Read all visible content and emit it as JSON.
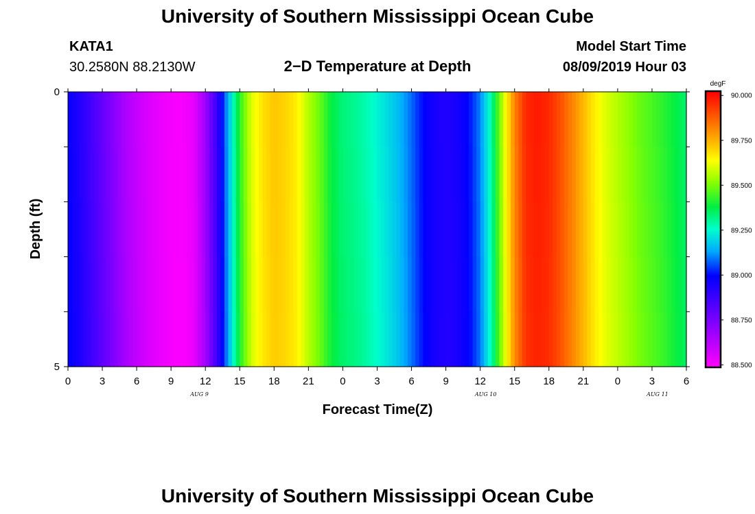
{
  "header": {
    "title": "University of Southern Mississippi Ocean Cube",
    "station": "KATA1",
    "coords": "30.2580N 88.2130W",
    "plot_title": "2−D Temperature at Depth",
    "model_start_label": "Model Start Time",
    "model_start_value": "08/09/2019 Hour 03"
  },
  "footer": {
    "title": "University of Southern Mississippi Ocean Cube"
  },
  "chart_data": {
    "type": "heatmap",
    "title": "2−D Temperature at Depth",
    "xlabel": "Forecast Time(Z)",
    "ylabel": "Depth (ft)",
    "x_ticks": [
      "0",
      "3",
      "6",
      "9",
      "12",
      "15",
      "18",
      "21",
      "0",
      "3",
      "6",
      "9",
      "12",
      "15",
      "18",
      "21",
      "0",
      "3",
      "6"
    ],
    "x_range_hours": [
      0,
      54
    ],
    "y_ticks": [
      "0",
      "5"
    ],
    "ylim": [
      0,
      5
    ],
    "y_reversed": true,
    "date_labels": [
      {
        "hour": 11,
        "text": "AUG  9"
      },
      {
        "hour": 36,
        "text": "AUG  10"
      },
      {
        "hour": 51,
        "text": "AUG  11"
      }
    ],
    "colorbar": {
      "unit": "degF",
      "min": 88.49,
      "max": 90.02,
      "ticks": [
        "90.000",
        "89.750",
        "89.500",
        "89.250",
        "89.000",
        "88.750",
        "88.500"
      ],
      "tick_values": [
        90.0,
        89.75,
        89.5,
        89.25,
        89.0,
        88.75,
        88.5
      ]
    },
    "series": [
      {
        "hour": 0,
        "temp": 88.98
      },
      {
        "hour": 1,
        "temp": 88.93
      },
      {
        "hour": 2,
        "temp": 88.86
      },
      {
        "hour": 3,
        "temp": 88.79
      },
      {
        "hour": 4,
        "temp": 88.72
      },
      {
        "hour": 5,
        "temp": 88.65
      },
      {
        "hour": 6,
        "temp": 88.6
      },
      {
        "hour": 7,
        "temp": 88.56
      },
      {
        "hour": 8,
        "temp": 88.53
      },
      {
        "hour": 9,
        "temp": 88.51
      },
      {
        "hour": 10,
        "temp": 88.5
      },
      {
        "hour": 11,
        "temp": 88.54
      },
      {
        "hour": 12,
        "temp": 88.68
      },
      {
        "hour": 13,
        "temp": 88.88
      },
      {
        "hour": 14,
        "temp": 89.15
      },
      {
        "hour": 15,
        "temp": 89.42
      },
      {
        "hour": 16,
        "temp": 89.6
      },
      {
        "hour": 17,
        "temp": 89.68
      },
      {
        "hour": 18,
        "temp": 89.72
      },
      {
        "hour": 19,
        "temp": 89.7
      },
      {
        "hour": 20,
        "temp": 89.66
      },
      {
        "hour": 21,
        "temp": 89.56
      },
      {
        "hour": 22,
        "temp": 89.48
      },
      {
        "hour": 23,
        "temp": 89.38
      },
      {
        "hour": 24,
        "temp": 89.33
      },
      {
        "hour": 25,
        "temp": 89.31
      },
      {
        "hour": 26,
        "temp": 89.28
      },
      {
        "hour": 27,
        "temp": 89.24
      },
      {
        "hour": 28,
        "temp": 89.2
      },
      {
        "hour": 29,
        "temp": 89.15
      },
      {
        "hour": 30,
        "temp": 89.08
      },
      {
        "hour": 31,
        "temp": 89.0
      },
      {
        "hour": 32,
        "temp": 88.95
      },
      {
        "hour": 33,
        "temp": 88.93
      },
      {
        "hour": 34,
        "temp": 88.95
      },
      {
        "hour": 35,
        "temp": 89.0
      },
      {
        "hour": 36,
        "temp": 89.1
      },
      {
        "hour": 37,
        "temp": 89.3
      },
      {
        "hour": 38,
        "temp": 89.58
      },
      {
        "hour": 39,
        "temp": 89.82
      },
      {
        "hour": 40,
        "temp": 89.96
      },
      {
        "hour": 41,
        "temp": 89.98
      },
      {
        "hour": 42,
        "temp": 89.96
      },
      {
        "hour": 43,
        "temp": 89.9
      },
      {
        "hour": 44,
        "temp": 89.82
      },
      {
        "hour": 45,
        "temp": 89.74
      },
      {
        "hour": 46,
        "temp": 89.66
      },
      {
        "hour": 47,
        "temp": 89.6
      },
      {
        "hour": 48,
        "temp": 89.56
      },
      {
        "hour": 49,
        "temp": 89.52
      },
      {
        "hour": 50,
        "temp": 89.48
      },
      {
        "hour": 51,
        "temp": 89.45
      },
      {
        "hour": 52,
        "temp": 89.42
      },
      {
        "hour": 53,
        "temp": 89.38
      },
      {
        "hour": 54,
        "temp": 89.34
      }
    ]
  }
}
